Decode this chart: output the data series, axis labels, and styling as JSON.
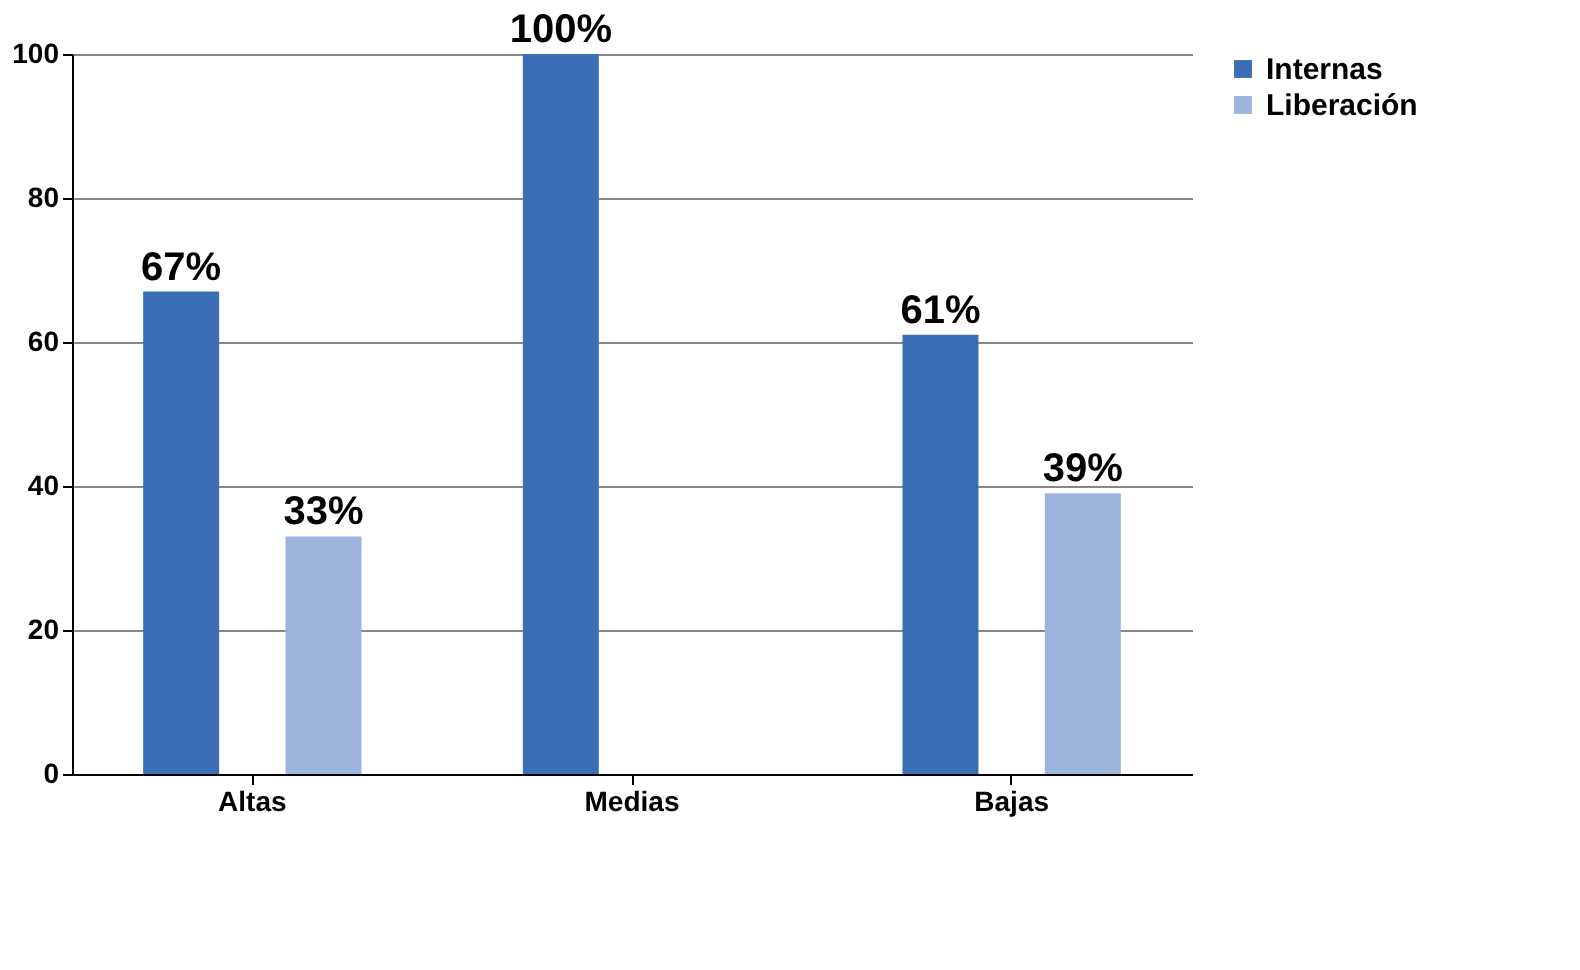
{
  "chart_data": {
    "type": "bar",
    "categories": [
      "Altas",
      "Medias",
      "Bajas"
    ],
    "series": [
      {
        "name": "Internas",
        "color": "#3a6fb5",
        "values": [
          67,
          100,
          61
        ],
        "value_labels": [
          "67%",
          "100%",
          "61%"
        ]
      },
      {
        "name": "Liberación",
        "color": "#9db5dc",
        "values": [
          33,
          null,
          39
        ],
        "value_labels": [
          "33%",
          null,
          "39%"
        ]
      }
    ],
    "ylim": [
      0,
      100
    ],
    "yticks": [
      0,
      20,
      40,
      60,
      80,
      100
    ],
    "grid": "y",
    "legend": "right"
  }
}
